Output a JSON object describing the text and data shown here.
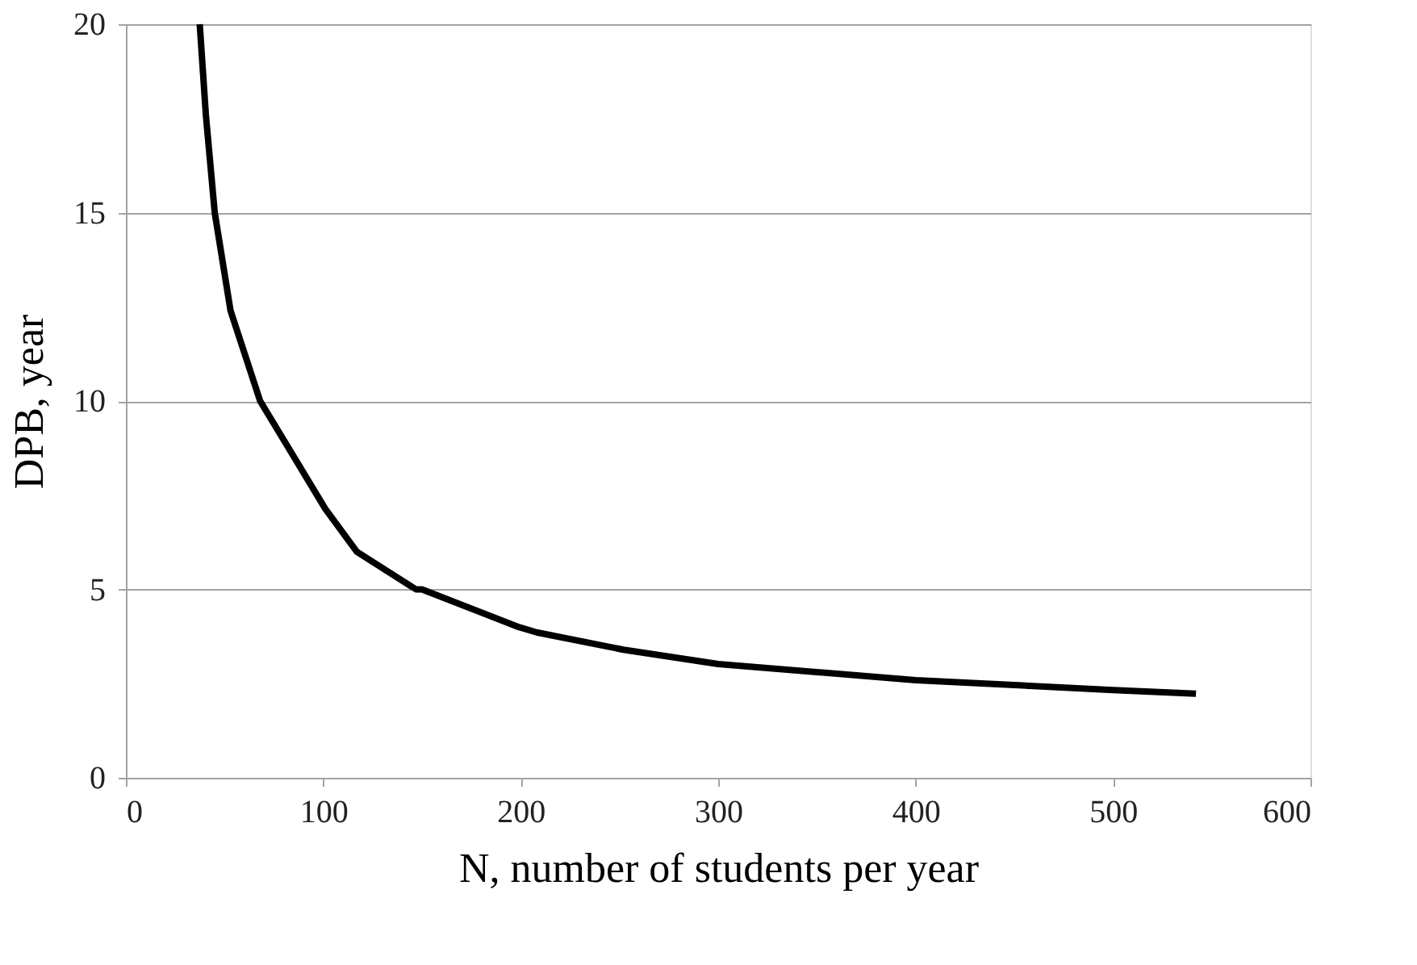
{
  "chart_data": {
    "type": "line",
    "xlabel": "N, number of students per year",
    "ylabel": "DPB, year",
    "x": [
      37.4,
      40.5,
      45,
      53,
      68,
      84.5,
      101,
      117,
      147,
      150,
      199,
      208,
      252,
      300,
      400,
      500,
      542
    ],
    "series": [
      {
        "color": "#000000",
        "values": [
          20,
          17.6,
          15,
          12.4,
          10,
          8.57,
          7.14,
          6.0,
          5.0,
          5.0,
          4.0,
          3.86,
          3.4,
          3.02,
          2.59,
          2.33,
          2.23
        ]
      }
    ],
    "xlim": [
      0,
      600
    ],
    "xticks": [
      0,
      100,
      200,
      300,
      400,
      500,
      600
    ],
    "ylim": [
      0,
      20
    ],
    "yticks": [
      0,
      5,
      10,
      15,
      20
    ],
    "grid": "y",
    "legend": false,
    "marker": "none",
    "line_style": "solid"
  }
}
